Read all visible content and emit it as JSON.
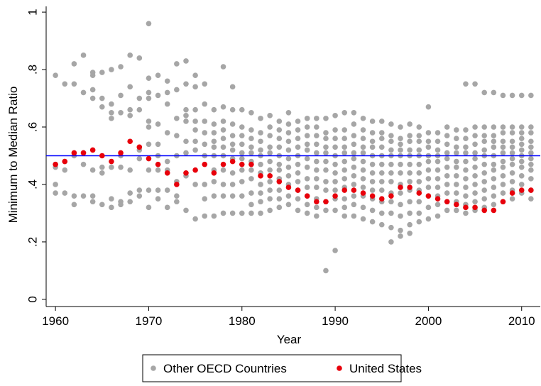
{
  "chart_data": {
    "type": "scatter",
    "x_label": "Year",
    "y_label": "Minimum to Median Ratio",
    "xlim": [
      1959,
      2012
    ],
    "ylim": [
      -0.025,
      1.02
    ],
    "xticks": [
      1960,
      1970,
      1980,
      1990,
      2000,
      2010
    ],
    "yticks": [
      0,
      {
        "value": 0.2,
        "label": ".2"
      },
      {
        "value": 0.4,
        "label": ".4"
      },
      {
        "value": 0.6,
        "label": ".6"
      },
      {
        "value": 0.8,
        "label": ".8"
      },
      1
    ],
    "reference_line": {
      "y": 0.5,
      "color": "#0000ff"
    },
    "legend": "bottom",
    "series": [
      {
        "name": "Other OECD Countries",
        "color": "#a6a6a6",
        "x": [
          1960,
          1961,
          1962,
          1963,
          1964,
          1965,
          1966,
          1967,
          1968,
          1969,
          1970,
          1971,
          1972,
          1973,
          1974,
          1975,
          1976,
          1977,
          1978,
          1979,
          1980,
          1981,
          1982,
          1983,
          1984,
          1985,
          1986,
          1987,
          1988,
          1989,
          1990,
          1991,
          1992,
          1993,
          1994,
          1995,
          1996,
          1997,
          1998,
          1999,
          2000,
          2001,
          2002,
          2003,
          2004,
          2005,
          2006,
          2007,
          2008,
          2009,
          2010,
          2011
        ],
        "values": [
          [
            0.78,
            0.4,
            0.37,
            0.47,
            0.46
          ],
          [
            0.75,
            0.45,
            0.37,
            0.48
          ],
          [
            0.82,
            0.75,
            0.33,
            0.36,
            0.5
          ],
          [
            0.85,
            0.72,
            0.36,
            0.47,
            0.51
          ],
          [
            0.79,
            0.78,
            0.73,
            0.7,
            0.34,
            0.36,
            0.45
          ],
          [
            0.79,
            0.7,
            0.67,
            0.33,
            0.44,
            0.46
          ],
          [
            0.8,
            0.68,
            0.65,
            0.63,
            0.32,
            0.35,
            0.46
          ],
          [
            0.81,
            0.71,
            0.65,
            0.33,
            0.34,
            0.46,
            0.5
          ],
          [
            0.85,
            0.74,
            0.66,
            0.64,
            0.37,
            0.34,
            0.45
          ],
          [
            0.84,
            0.7,
            0.66,
            0.38,
            0.36,
            0.49,
            0.52
          ],
          [
            0.96,
            0.77,
            0.72,
            0.7,
            0.62,
            0.6,
            0.54,
            0.38,
            0.32,
            0.45
          ],
          [
            0.78,
            0.71,
            0.61,
            0.54,
            0.5,
            0.38,
            0.35,
            0.45
          ],
          [
            0.76,
            0.72,
            0.68,
            0.58,
            0.48,
            0.38,
            0.32,
            0.45
          ],
          [
            0.82,
            0.73,
            0.63,
            0.57,
            0.5,
            0.41,
            0.36,
            0.34
          ],
          [
            0.83,
            0.75,
            0.66,
            0.64,
            0.62,
            0.55,
            0.51,
            0.43,
            0.31
          ],
          [
            0.78,
            0.74,
            0.66,
            0.62,
            0.59,
            0.55,
            0.52,
            0.4,
            0.28
          ],
          [
            0.75,
            0.68,
            0.62,
            0.58,
            0.54,
            0.5,
            0.4,
            0.35,
            0.29
          ],
          [
            0.66,
            0.61,
            0.58,
            0.55,
            0.53,
            0.5,
            0.45,
            0.41,
            0.36,
            0.29
          ],
          [
            0.81,
            0.67,
            0.62,
            0.59,
            0.56,
            0.53,
            0.5,
            0.45,
            0.4,
            0.36,
            0.3
          ],
          [
            0.74,
            0.66,
            0.61,
            0.57,
            0.54,
            0.52,
            0.49,
            0.44,
            0.4,
            0.36,
            0.3
          ],
          [
            0.66,
            0.6,
            0.57,
            0.54,
            0.51,
            0.49,
            0.45,
            0.41,
            0.36,
            0.3
          ],
          [
            0.65,
            0.59,
            0.56,
            0.53,
            0.51,
            0.48,
            0.45,
            0.42,
            0.37,
            0.33,
            0.3
          ],
          [
            0.63,
            0.58,
            0.55,
            0.52,
            0.5,
            0.47,
            0.44,
            0.4,
            0.37,
            0.34,
            0.3
          ],
          [
            0.64,
            0.6,
            0.57,
            0.53,
            0.51,
            0.48,
            0.45,
            0.41,
            0.38,
            0.35,
            0.31
          ],
          [
            0.62,
            0.59,
            0.56,
            0.53,
            0.5,
            0.47,
            0.45,
            0.42,
            0.38,
            0.35,
            0.32
          ],
          [
            0.65,
            0.61,
            0.58,
            0.55,
            0.52,
            0.49,
            0.46,
            0.43,
            0.4,
            0.36,
            0.33
          ],
          [
            0.62,
            0.59,
            0.56,
            0.53,
            0.5,
            0.47,
            0.44,
            0.41,
            0.38,
            0.35,
            0.31
          ],
          [
            0.63,
            0.6,
            0.57,
            0.54,
            0.52,
            0.49,
            0.46,
            0.42,
            0.39,
            0.36,
            0.33,
            0.3
          ],
          [
            0.63,
            0.6,
            0.57,
            0.54,
            0.51,
            0.48,
            0.45,
            0.42,
            0.39,
            0.35,
            0.32,
            0.29
          ],
          [
            0.63,
            0.58,
            0.56,
            0.53,
            0.51,
            0.48,
            0.45,
            0.41,
            0.38,
            0.34,
            0.31,
            0.1
          ],
          [
            0.64,
            0.59,
            0.56,
            0.53,
            0.5,
            0.47,
            0.44,
            0.41,
            0.38,
            0.35,
            0.31,
            0.17
          ],
          [
            0.65,
            0.59,
            0.56,
            0.53,
            0.51,
            0.48,
            0.45,
            0.42,
            0.39,
            0.35,
            0.32,
            0.29
          ],
          [
            0.65,
            0.61,
            0.57,
            0.54,
            0.51,
            0.49,
            0.46,
            0.43,
            0.4,
            0.36,
            0.33,
            0.29
          ],
          [
            0.63,
            0.59,
            0.56,
            0.53,
            0.51,
            0.48,
            0.45,
            0.42,
            0.39,
            0.36,
            0.32,
            0.28
          ],
          [
            0.62,
            0.58,
            0.55,
            0.53,
            0.5,
            0.47,
            0.44,
            0.41,
            0.38,
            0.35,
            0.31,
            0.27
          ],
          [
            0.62,
            0.58,
            0.56,
            0.53,
            0.5,
            0.47,
            0.44,
            0.41,
            0.38,
            0.34,
            0.3,
            0.26
          ],
          [
            0.61,
            0.57,
            0.55,
            0.52,
            0.5,
            0.47,
            0.44,
            0.41,
            0.37,
            0.34,
            0.3,
            0.25,
            0.2
          ],
          [
            0.6,
            0.56,
            0.54,
            0.52,
            0.5,
            0.47,
            0.44,
            0.4,
            0.37,
            0.33,
            0.29,
            0.24,
            0.22
          ],
          [
            0.61,
            0.57,
            0.55,
            0.52,
            0.5,
            0.47,
            0.44,
            0.41,
            0.38,
            0.34,
            0.3,
            0.26,
            0.23
          ],
          [
            0.6,
            0.57,
            0.55,
            0.52,
            0.5,
            0.47,
            0.44,
            0.41,
            0.38,
            0.34,
            0.3,
            0.27
          ],
          [
            0.67,
            0.58,
            0.55,
            0.53,
            0.5,
            0.48,
            0.45,
            0.42,
            0.39,
            0.36,
            0.32,
            0.28
          ],
          [
            0.58,
            0.55,
            0.52,
            0.5,
            0.48,
            0.45,
            0.42,
            0.39,
            0.36,
            0.33,
            0.29
          ],
          [
            0.6,
            0.57,
            0.54,
            0.51,
            0.49,
            0.46,
            0.43,
            0.4,
            0.37,
            0.34,
            0.31
          ],
          [
            0.59,
            0.56,
            0.53,
            0.51,
            0.48,
            0.46,
            0.43,
            0.4,
            0.37,
            0.34,
            0.31
          ],
          [
            0.75,
            0.59,
            0.56,
            0.53,
            0.51,
            0.48,
            0.45,
            0.42,
            0.39,
            0.36,
            0.33,
            0.3
          ],
          [
            0.75,
            0.6,
            0.57,
            0.54,
            0.51,
            0.49,
            0.46,
            0.43,
            0.4,
            0.37,
            0.34,
            0.31
          ],
          [
            0.72,
            0.6,
            0.57,
            0.55,
            0.52,
            0.5,
            0.47,
            0.44,
            0.41,
            0.38,
            0.35,
            0.32
          ],
          [
            0.72,
            0.6,
            0.57,
            0.55,
            0.53,
            0.5,
            0.47,
            0.45,
            0.42,
            0.39,
            0.36,
            0.33
          ],
          [
            0.71,
            0.6,
            0.58,
            0.55,
            0.53,
            0.51,
            0.48,
            0.46,
            0.43,
            0.4,
            0.37,
            0.34
          ],
          [
            0.71,
            0.6,
            0.58,
            0.55,
            0.53,
            0.51,
            0.49,
            0.47,
            0.44,
            0.41,
            0.38,
            0.35
          ],
          [
            0.71,
            0.6,
            0.58,
            0.56,
            0.54,
            0.52,
            0.5,
            0.48,
            0.46,
            0.43,
            0.4,
            0.37
          ],
          [
            0.71,
            0.6,
            0.58,
            0.55,
            0.53,
            0.51,
            0.49,
            0.47,
            0.45,
            0.42,
            0.38,
            0.35
          ]
        ]
      },
      {
        "name": "United States",
        "color": "#e8000b",
        "x": [
          1960,
          1961,
          1962,
          1963,
          1964,
          1965,
          1966,
          1967,
          1968,
          1969,
          1970,
          1971,
          1972,
          1973,
          1974,
          1975,
          1976,
          1977,
          1978,
          1979,
          1980,
          1981,
          1982,
          1983,
          1984,
          1985,
          1986,
          1987,
          1988,
          1989,
          1990,
          1991,
          1992,
          1993,
          1994,
          1995,
          1996,
          1997,
          1998,
          1999,
          2000,
          2001,
          2002,
          2003,
          2004,
          2005,
          2006,
          2007,
          2008,
          2009,
          2010,
          2011
        ],
        "values": [
          0.47,
          0.48,
          0.51,
          0.51,
          0.52,
          0.5,
          0.48,
          0.51,
          0.55,
          0.53,
          0.49,
          0.47,
          0.44,
          0.4,
          0.44,
          0.45,
          0.47,
          0.44,
          0.47,
          0.48,
          0.47,
          0.47,
          0.43,
          0.43,
          0.41,
          0.39,
          0.38,
          0.36,
          0.34,
          0.34,
          0.36,
          0.38,
          0.38,
          0.37,
          0.36,
          0.35,
          0.36,
          0.39,
          0.39,
          0.37,
          0.36,
          0.35,
          0.34,
          0.33,
          0.32,
          0.32,
          0.31,
          0.31,
          0.34,
          0.37,
          0.38,
          0.38
        ]
      }
    ]
  }
}
